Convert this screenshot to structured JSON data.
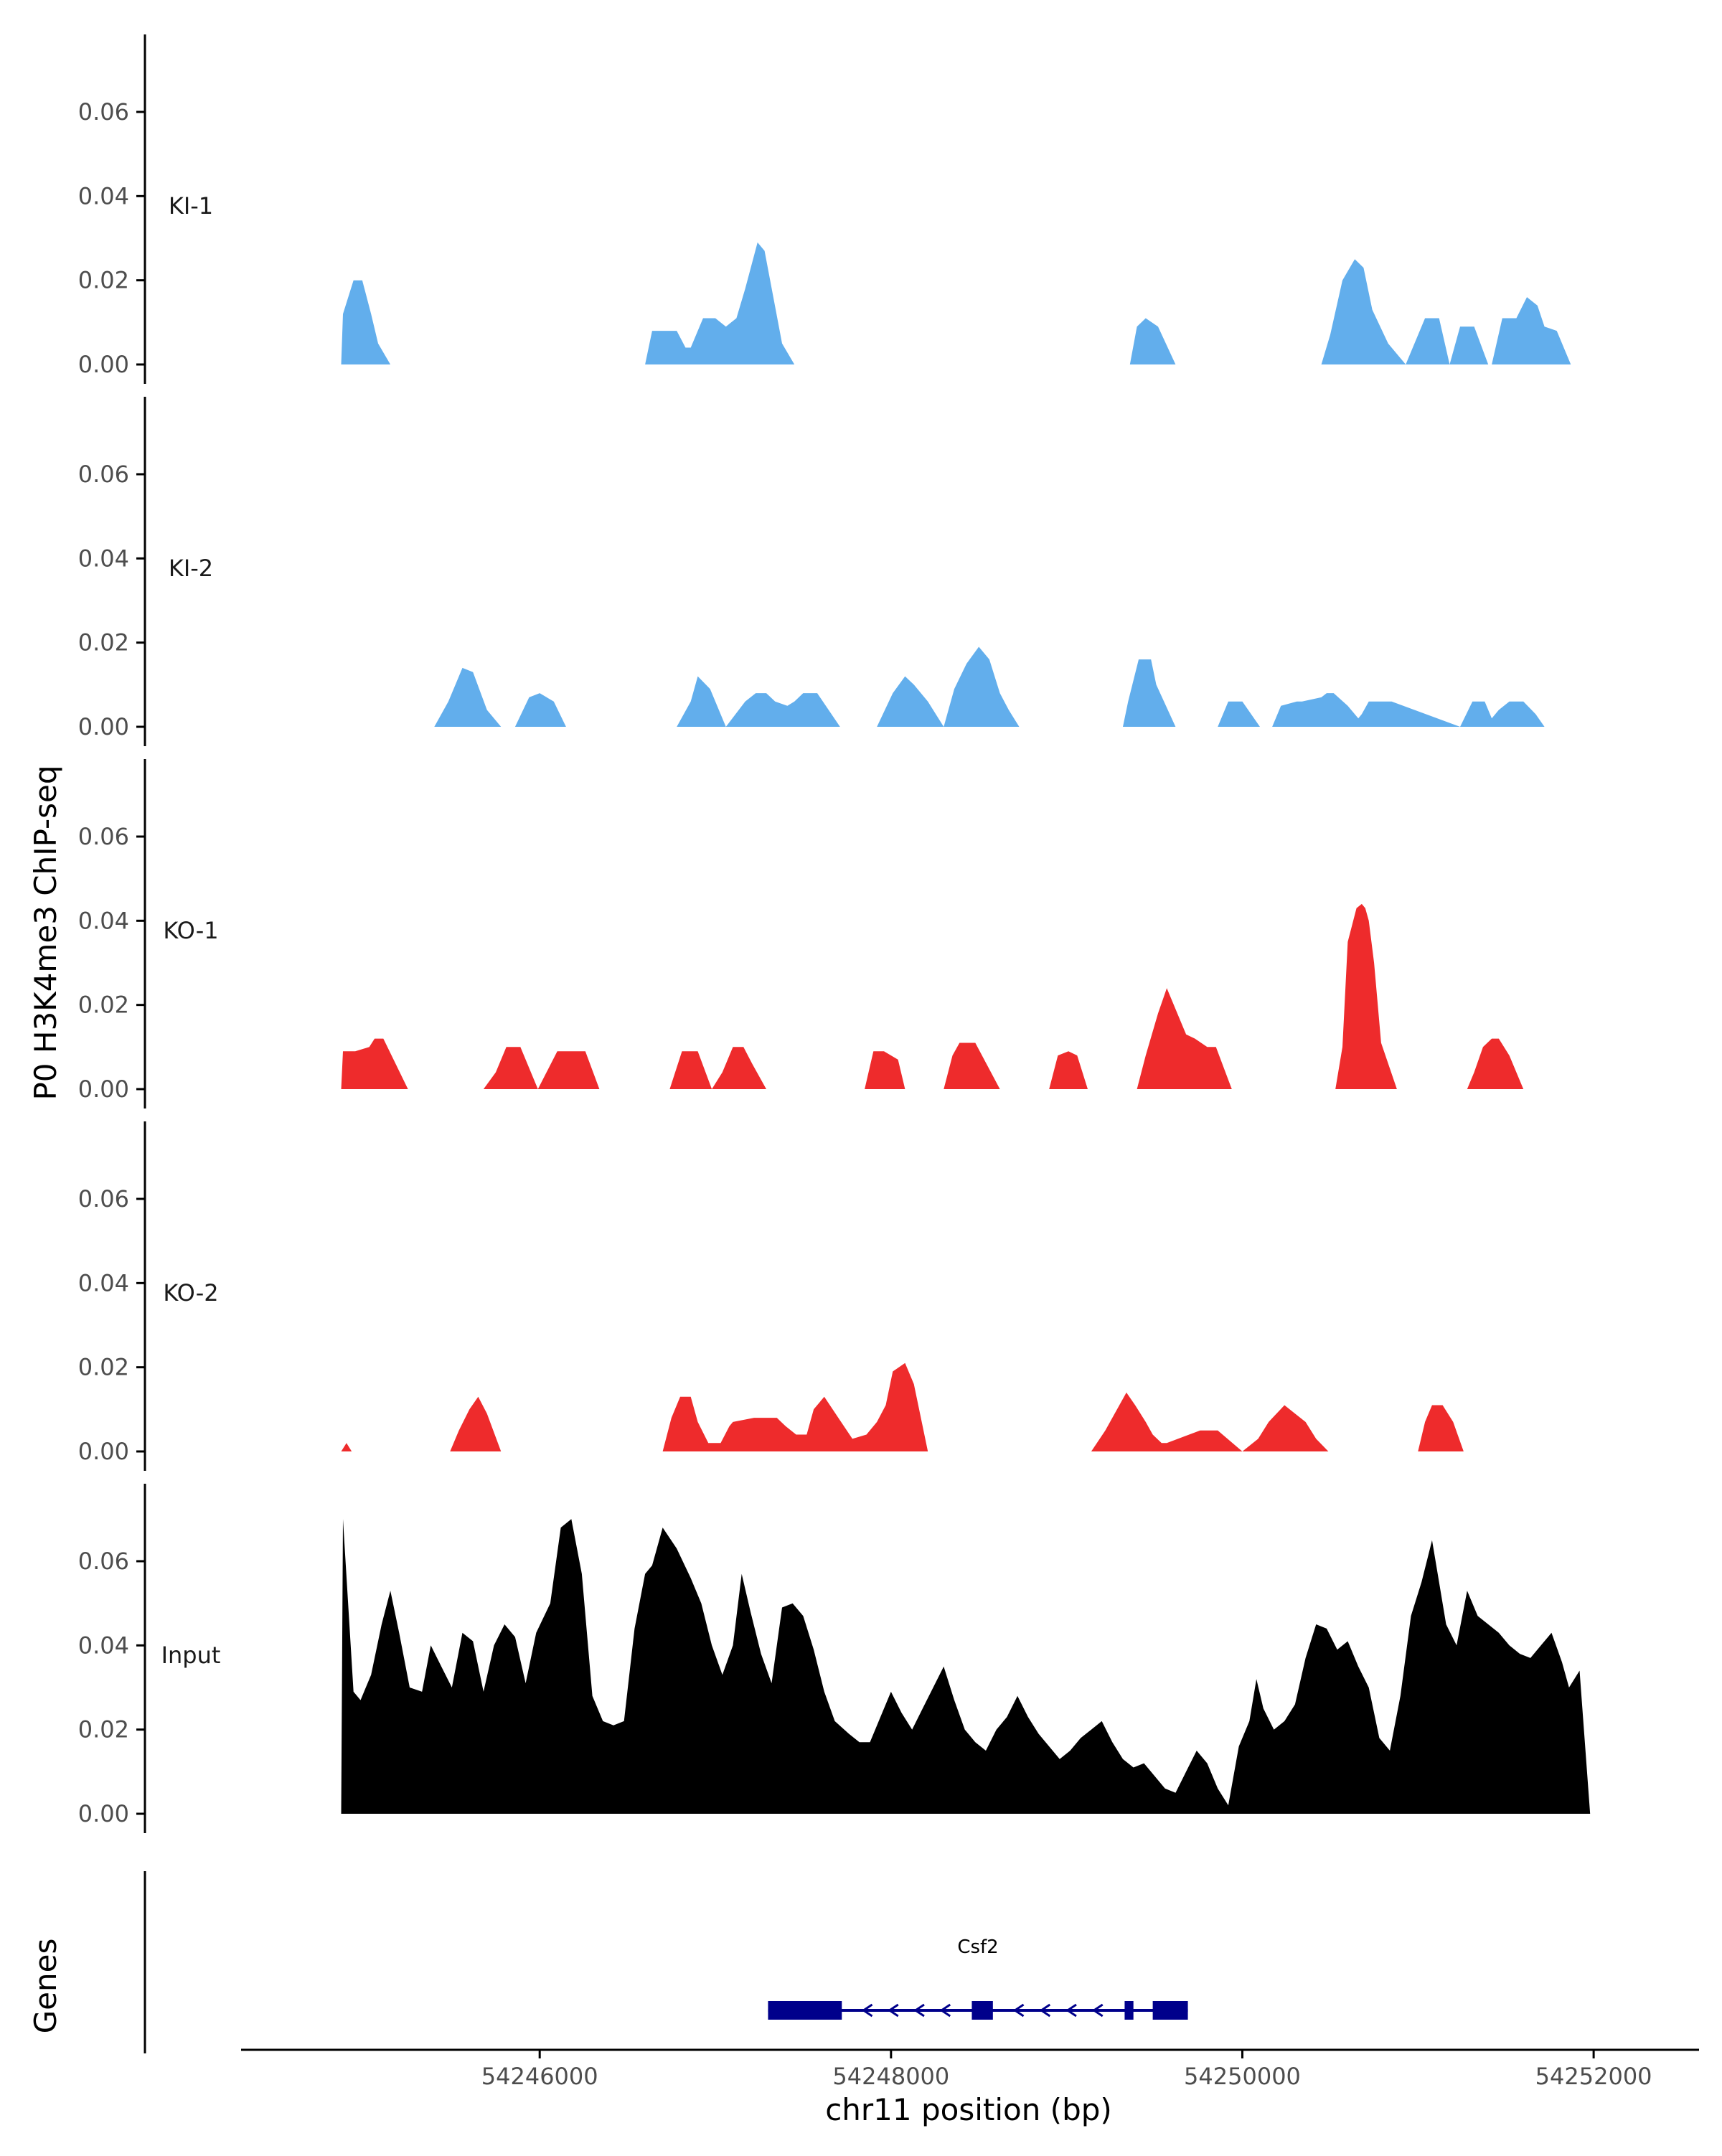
{
  "chart_data": {
    "type": "area",
    "ylabel": "P0 H3K4me3 ChIP-seq",
    "xlabel": "chr11 position (bp)",
    "xlim": [
      54244300,
      54252600
    ],
    "ylim": [
      0,
      0.075
    ],
    "y_ticks": [
      0.0,
      0.02,
      0.04,
      0.06
    ],
    "y_tick_labels": [
      "0.00",
      "0.02",
      "0.04",
      "0.06"
    ],
    "x_ticks": [
      54246000,
      54248000,
      54250000,
      54252000
    ],
    "x_tick_labels": [
      "54246000",
      "54248000",
      "54250000",
      "54252000"
    ],
    "colors": {
      "KI": "#62aeec",
      "KO": "#ee2b2c",
      "Input": "#000000",
      "gene": "#00008b",
      "axis": "#000000"
    },
    "tracks": [
      {
        "name": "KI-1",
        "color": "#62aeec",
        "x": [
          54244870,
          54244880,
          54244940,
          54244990,
          54245040,
          54245080,
          54245150,
          54246600,
          54246640,
          54246700,
          54246780,
          54246830,
          54246860,
          54246930,
          54247000,
          54247060,
          54247120,
          54247170,
          54247240,
          54247280,
          54247330,
          54247380,
          54247450,
          54249360,
          54249400,
          54249450,
          54249520,
          54249620,
          54250450,
          54250500,
          54250570,
          54250640,
          54250690,
          54250740,
          54250830,
          54250930,
          54251040,
          54251120,
          54251180,
          54251240,
          54251320,
          54251400,
          54251420,
          54251480,
          54251560,
          54251620,
          54251680,
          54251720,
          54251790,
          54251870,
          54251880,
          54251900,
          54252000,
          54252060
        ],
        "y": [
          0,
          0.012,
          0.02,
          0.02,
          0.012,
          0.005,
          0,
          0,
          0.008,
          0.008,
          0.008,
          0.004,
          0.004,
          0.011,
          0.011,
          0.009,
          0.011,
          0.018,
          0.029,
          0.027,
          0.016,
          0.005,
          0,
          0,
          0.009,
          0.011,
          0.009,
          0,
          0,
          0.007,
          0.02,
          0.025,
          0.023,
          0.013,
          0.005,
          0,
          0.011,
          0.011,
          0,
          0.009,
          0.009,
          0,
          0,
          0.011,
          0.011,
          0.016,
          0.014,
          0.009,
          0.008,
          0,
          0,
          0,
          0,
          0
        ]
      },
      {
        "name": "KI-2",
        "color": "#62aeec",
        "x": [
          54245400,
          54245480,
          54245560,
          54245620,
          54245700,
          54245780,
          54245860,
          54245940,
          54246000,
          54246080,
          54246150,
          54246780,
          54246860,
          54246900,
          54246970,
          54247060,
          54247170,
          54247230,
          54247290,
          54247340,
          54247410,
          54247450,
          54247500,
          54247580,
          54247710,
          54247920,
          54248010,
          54248080,
          54248130,
          54248210,
          54248300,
          54248360,
          54248430,
          54248500,
          54248560,
          54248620,
          54248670,
          54248730,
          54248800,
          54248840,
          54249320,
          54249350,
          54249410,
          54249480,
          54249510,
          54249620,
          54249860,
          54249920,
          54250000,
          54250100,
          54250170,
          54250220,
          54250310,
          54250340,
          54250450,
          54250480,
          54250520,
          54250600,
          54250660,
          54250680,
          54250720,
          54250850,
          54251240,
          54251310,
          54251380,
          54251420,
          54251460,
          54251520,
          54251600,
          54251670,
          54251720,
          54251770
        ],
        "y": [
          0,
          0.006,
          0.014,
          0.013,
          0.004,
          0,
          0,
          0.007,
          0.008,
          0.006,
          0,
          0,
          0.006,
          0.012,
          0.009,
          0,
          0.006,
          0.008,
          0.008,
          0.006,
          0.005,
          0.006,
          0.008,
          0.008,
          0,
          0,
          0.008,
          0.012,
          0.01,
          0.006,
          0,
          0.009,
          0.015,
          0.019,
          0.016,
          0.008,
          0.004,
          0,
          0,
          0,
          0,
          0.006,
          0.016,
          0.016,
          0.01,
          0,
          0,
          0.006,
          0.006,
          0,
          0,
          0.005,
          0.006,
          0.006,
          0.007,
          0.008,
          0.008,
          0.005,
          0.002,
          0.003,
          0.006,
          0.006,
          0,
          0.006,
          0.006,
          0.002,
          0.004,
          0.006,
          0.006,
          0.003,
          0,
          0
        ]
      },
      {
        "name": "KO-1",
        "color": "#ee2b2c",
        "x": [
          54244870,
          54244880,
          54244950,
          54245030,
          54245060,
          54245110,
          54245250,
          54245680,
          54245750,
          54245810,
          54245890,
          54245990,
          54246100,
          54246180,
          54246260,
          54246340,
          54246740,
          54246810,
          54246900,
          54246980,
          54247040,
          54247100,
          54247160,
          54247210,
          54247290,
          54247340,
          54247850,
          54247900,
          54247960,
          54248040,
          54248080,
          54248300,
          54248350,
          54248390,
          54248450,
          54248480,
          54248620,
          54248900,
          54248950,
          54249010,
          54249060,
          54249120,
          54249400,
          54249450,
          54249520,
          54249570,
          54249610,
          54249680,
          54249730,
          54249800,
          54249850,
          54249940,
          54250530,
          54250570,
          54250600,
          54250650,
          54250680,
          54250700,
          54250720,
          54250750,
          54250790,
          54250880,
          54251280,
          54251320,
          54251370,
          54251420,
          54251460,
          54251520,
          54251600
        ],
        "y": [
          0,
          0.009,
          0.009,
          0.01,
          0.012,
          0.012,
          0,
          0,
          0.004,
          0.01,
          0.01,
          0,
          0.009,
          0.009,
          0.009,
          0,
          0,
          0.009,
          0.009,
          0,
          0.004,
          0.01,
          0.01,
          0.006,
          0,
          0,
          0,
          0.009,
          0.009,
          0.007,
          0,
          0,
          0.008,
          0.011,
          0.011,
          0.011,
          0,
          0,
          0.008,
          0.009,
          0.008,
          0,
          0,
          0.008,
          0.018,
          0.024,
          0.02,
          0.013,
          0.012,
          0.01,
          0.01,
          0,
          0,
          0.01,
          0.035,
          0.043,
          0.044,
          0.043,
          0.04,
          0.03,
          0.011,
          0,
          0,
          0.004,
          0.01,
          0.012,
          0.012,
          0.008,
          0
        ]
      },
      {
        "name": "KO-2",
        "color": "#ee2b2c",
        "x": [
          54244870,
          54244900,
          54244930,
          54245490,
          54245540,
          54245600,
          54245650,
          54245700,
          54245780,
          54246700,
          54246750,
          54246800,
          54246860,
          54246900,
          54246960,
          54247030,
          54247080,
          54247100,
          54247220,
          54247350,
          54247400,
          54247460,
          54247520,
          54247560,
          54247620,
          54247700,
          54247780,
          54247860,
          54247920,
          54247970,
          54248010,
          54248080,
          54248130,
          54248210,
          54249140,
          54249220,
          54249300,
          54249340,
          54249390,
          54249450,
          54249490,
          54249540,
          54249560,
          54249570,
          54249760,
          54249860,
          54250000,
          54250090,
          54250150,
          54250240,
          54250300,
          54250360,
          54250420,
          54250490,
          54251000,
          54251040,
          54251080,
          54251140,
          54251200,
          54251260
        ],
        "y": [
          0,
          0.002,
          0,
          0,
          0.005,
          0.01,
          0.013,
          0.009,
          0,
          0,
          0.008,
          0.013,
          0.013,
          0.007,
          0.002,
          0.002,
          0.006,
          0.007,
          0.008,
          0.008,
          0.006,
          0.004,
          0.004,
          0.01,
          0.013,
          0.008,
          0.003,
          0.004,
          0.007,
          0.011,
          0.019,
          0.021,
          0.016,
          0,
          0,
          0.005,
          0.011,
          0.014,
          0.011,
          0.007,
          0.004,
          0.002,
          0.002,
          0.002,
          0.005,
          0.005,
          0,
          0.003,
          0.007,
          0.011,
          0.009,
          0.007,
          0.003,
          0,
          0,
          0.007,
          0.011,
          0.011,
          0.007,
          0
        ]
      },
      {
        "name": "Input",
        "color": "#000000",
        "x": [
          54244870,
          54244880,
          54244940,
          54244980,
          54245040,
          54245100,
          54245150,
          54245200,
          54245260,
          54245330,
          54245380,
          54245440,
          54245500,
          54245560,
          54245620,
          54245680,
          54245740,
          54245800,
          54245860,
          54245920,
          54245980,
          54246060,
          54246120,
          54246180,
          54246240,
          54246300,
          54246360,
          54246420,
          54246480,
          54246540,
          54246600,
          54246640,
          54246700,
          54246780,
          54246860,
          54246920,
          54246980,
          54247040,
          54247100,
          54247150,
          54247200,
          54247260,
          54247320,
          54247380,
          54247440,
          54247500,
          54247560,
          54247620,
          54247680,
          54247760,
          54247820,
          54247880,
          54247940,
          54248000,
          54248060,
          54248120,
          54248180,
          54248240,
          54248300,
          54248360,
          54248420,
          54248480,
          54248540,
          54248600,
          54248660,
          54248720,
          54248780,
          54248840,
          54248900,
          54248960,
          54249020,
          54249080,
          54249140,
          54249200,
          54249260,
          54249320,
          54249380,
          54249440,
          54249500,
          54249560,
          54249620,
          54249680,
          54249740,
          54249800,
          54249860,
          54249920,
          54249980,
          54250040,
          54250080,
          54250120,
          54250180,
          54250240,
          54250300,
          54250360,
          54250420,
          54250480,
          54250540,
          54250600,
          54250660,
          54250720,
          54250780,
          54250840,
          54250900,
          54250960,
          54251020,
          54251080,
          54251120,
          54251160,
          54251220,
          54251280,
          54251340,
          54251400,
          54251460,
          54251520,
          54251580,
          54251640,
          54251700,
          54251760,
          54251820,
          54251860,
          54251920,
          54251980,
          54252060,
          54252070
        ],
        "y": [
          0,
          0.07,
          0.029,
          0.027,
          0.033,
          0.045,
          0.053,
          0.043,
          0.03,
          0.029,
          0.04,
          0.035,
          0.03,
          0.043,
          0.041,
          0.029,
          0.04,
          0.045,
          0.042,
          0.031,
          0.043,
          0.05,
          0.068,
          0.07,
          0.057,
          0.028,
          0.022,
          0.021,
          0.022,
          0.044,
          0.057,
          0.059,
          0.068,
          0.063,
          0.056,
          0.05,
          0.04,
          0.033,
          0.04,
          0.057,
          0.048,
          0.038,
          0.031,
          0.049,
          0.05,
          0.047,
          0.039,
          0.029,
          0.022,
          0.019,
          0.017,
          0.017,
          0.023,
          0.029,
          0.024,
          0.02,
          0.025,
          0.03,
          0.035,
          0.027,
          0.02,
          0.017,
          0.015,
          0.02,
          0.023,
          0.028,
          0.023,
          0.019,
          0.016,
          0.013,
          0.015,
          0.018,
          0.02,
          0.022,
          0.017,
          0.013,
          0.011,
          0.012,
          0.009,
          0.006,
          0.005,
          0.01,
          0.015,
          0.012,
          0.006,
          0.002,
          0.016,
          0.022,
          0.032,
          0.025,
          0.02,
          0.022,
          0.026,
          0.037,
          0.045,
          0.044,
          0.039,
          0.041,
          0.035,
          0.03,
          0.018,
          0.015,
          0.028,
          0.047,
          0.055,
          0.065,
          0.055,
          0.045,
          0.04,
          0.053,
          0.047,
          0.045,
          0.043,
          0.04,
          0.038,
          0.037,
          0.04,
          0.043,
          0.036,
          0.03,
          0.034,
          0,
          0,
          0
        ]
      }
    ],
    "genes_track": {
      "label": "Genes",
      "genes": [
        {
          "name": "Csf2",
          "start": 54247300,
          "end": 54249690,
          "strand": "-",
          "exons": [
            [
              54247300,
              54247720
            ],
            [
              54248460,
              54248580
            ],
            [
              54249330,
              54249380
            ],
            [
              54249490,
              54249690
            ]
          ]
        }
      ]
    }
  }
}
